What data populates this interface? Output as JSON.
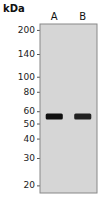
{
  "chart_data": {
    "type": "gel",
    "y_label": "kDa",
    "categories": [
      "A",
      "B"
    ],
    "values": [
      56,
      56
    ],
    "colors": [
      "#111111",
      "#222222"
    ],
    "log": "y",
    "ylim": [
      18,
      220
    ],
    "yticks": [
      20,
      30,
      40,
      50,
      60,
      80,
      100,
      140,
      200
    ]
  }
}
